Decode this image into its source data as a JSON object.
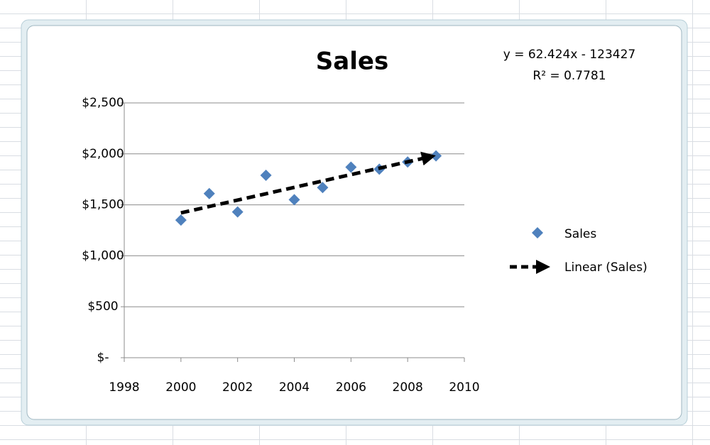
{
  "chart_data": {
    "type": "scatter",
    "title": "Sales",
    "x": [
      2000,
      2001,
      2002,
      2003,
      2004,
      2005,
      2006,
      2007,
      2008,
      2009
    ],
    "series": [
      {
        "name": "Sales",
        "color": "#4f81bd",
        "values": [
          1350,
          1610,
          1430,
          1790,
          1550,
          1670,
          1870,
          1850,
          1920,
          1980
        ]
      }
    ],
    "trendline": {
      "name": "Linear (Sales)",
      "color": "#000000",
      "slope": 62.424,
      "intercept": -123427,
      "equation": "y = 62.424x - 123427",
      "r_squared_label": "R² = 0.7781"
    },
    "xlim": [
      1998,
      2010
    ],
    "xticks": [
      1998,
      2000,
      2002,
      2004,
      2006,
      2008,
      2010
    ],
    "ylim": [
      0,
      2500
    ],
    "yticks": [
      {
        "value": 0,
        "label": "$-"
      },
      {
        "value": 500,
        "label": "$500"
      },
      {
        "value": 1000,
        "label": "$1,000"
      },
      {
        "value": 1500,
        "label": "$1,500"
      },
      {
        "value": 2000,
        "label": "$2,000"
      },
      {
        "value": 2500,
        "label": "$2,500"
      }
    ],
    "grid": true,
    "legend": "right"
  }
}
